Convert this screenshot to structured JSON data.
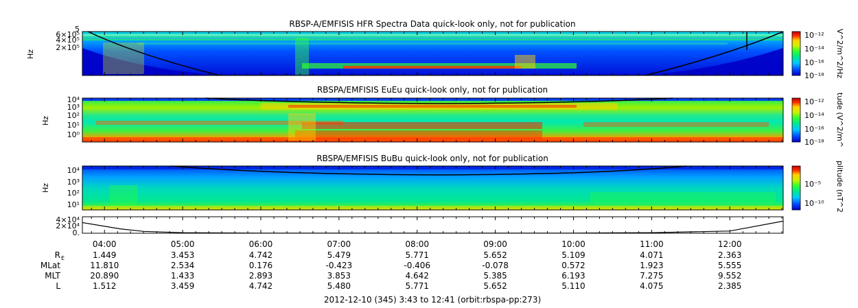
{
  "chart_data": [
    {
      "type": "heatmap",
      "title": "RBSP-A/EMFISIS  HFR Spectra Data quick-look only, not for publication",
      "ylabel": "Hz",
      "yticks": [
        "2×10⁵",
        "4×10⁵",
        "6×10⁵",
        "5"
      ],
      "colorbar_label": "V^2/m^2/Hz",
      "colorbar_ticks": [
        "10⁻¹²",
        "10⁻¹⁴",
        "10⁻¹⁶",
        "10⁻¹⁸"
      ],
      "colormap": [
        "#0000c8",
        "#0048ff",
        "#00c8ff",
        "#00e890",
        "#30ff30",
        "#d0f000",
        "#ffd000",
        "#ff3000",
        "#c00000"
      ]
    },
    {
      "type": "heatmap",
      "title": "RBSPA/EMFISIS  EuEu quick-look only, not for publication",
      "ylabel": "Hz",
      "yticks": [
        "10⁰",
        "10¹",
        "10²",
        "10³",
        "10⁴"
      ],
      "colorbar_label": "tude (V^2/m^",
      "colorbar_ticks": [
        "10⁻¹²",
        "10⁻¹⁴",
        "10⁻¹⁶",
        "10⁻¹⁸"
      ],
      "colormap": [
        "#0000c8",
        "#0048ff",
        "#00c8ff",
        "#00e890",
        "#30ff30",
        "#d0f000",
        "#ffd000",
        "#ff3000",
        "#c00000"
      ]
    },
    {
      "type": "heatmap",
      "title": "RBSPA/EMFISIS  BuBu quick-look only, not for publication",
      "ylabel": "Hz",
      "yticks": [
        "10¹",
        "10²",
        "10³",
        "10⁴"
      ],
      "colorbar_label": "plitude (nT^2",
      "colorbar_ticks": [
        "10⁻⁵",
        "10⁻¹⁰"
      ],
      "colormap": [
        "#0000c8",
        "#0048ff",
        "#00c8ff",
        "#00e890",
        "#30ff30",
        "#d0f000",
        "#ffd000",
        "#ff3000",
        "#c00000"
      ]
    },
    {
      "type": "line",
      "yticks": [
        "0.",
        "2×10⁴",
        "4×10⁴"
      ],
      "x_hours": [
        3.717,
        4.2,
        4.5,
        5.0,
        6.0,
        8.0,
        10.0,
        11.0,
        12.0,
        12.683
      ],
      "y": [
        29000,
        12000,
        5000,
        1500,
        400,
        300,
        400,
        1500,
        6000,
        33000
      ],
      "ylim": [
        0,
        45000
      ]
    }
  ],
  "time_axis": {
    "start_hour": 3.717,
    "end_hour": 12.683,
    "labels": [
      {
        "t": 4,
        "text": "04:00"
      },
      {
        "t": 5,
        "text": "05:00"
      },
      {
        "t": 6,
        "text": "06:00"
      },
      {
        "t": 7,
        "text": "07:00"
      },
      {
        "t": 8,
        "text": "08:00"
      },
      {
        "t": 9,
        "text": "09:00"
      },
      {
        "t": 10,
        "text": "10:00"
      },
      {
        "t": 11,
        "text": "11:00"
      },
      {
        "t": 12,
        "text": "12:00"
      }
    ]
  },
  "ephemeris": {
    "rows": [
      {
        "label": "R",
        "sub": "E",
        "values": [
          "1.449",
          "3.453",
          "4.742",
          "5.479",
          "5.771",
          "5.652",
          "5.109",
          "4.071",
          "2.363"
        ]
      },
      {
        "label": "MLat",
        "values": [
          "11.810",
          "2.534",
          "0.176",
          "-0.423",
          "-0.406",
          "-0.078",
          "0.572",
          "1.923",
          "5.555"
        ]
      },
      {
        "label": "MLT",
        "values": [
          "20.890",
          "1.433",
          "2.893",
          "3.853",
          "4.642",
          "5.385",
          "6.193",
          "7.275",
          "9.552"
        ]
      },
      {
        "label": "L",
        "values": [
          "1.512",
          "3.459",
          "4.742",
          "5.480",
          "5.771",
          "5.652",
          "5.110",
          "4.075",
          "2.385"
        ]
      }
    ]
  },
  "footer": "2012-12-10 (345) 3:43 to 12:41 (orbit:rbspa-pp:273)"
}
